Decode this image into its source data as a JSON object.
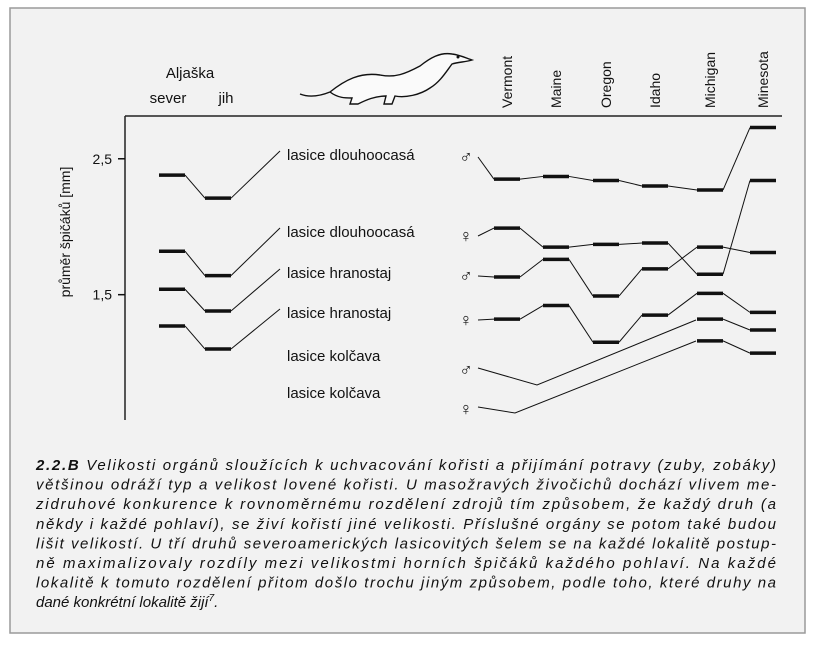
{
  "chart_data": {
    "type": "line",
    "y_label": "průměr špičáků [mm]",
    "group_label": "Aljaška",
    "categories": [
      "sever",
      "jih",
      "Vermont",
      "Maine",
      "Oregon",
      "Idaho",
      "Michigan",
      "Minesota"
    ],
    "ylim": [
      0.6,
      2.8
    ],
    "yticks": [
      {
        "value": 1.5,
        "label": "1,5"
      },
      {
        "value": 2.5,
        "label": "2,5"
      }
    ],
    "color": "#111111",
    "series": [
      {
        "name": "lasice dlouhoocasá",
        "sex": "♂",
        "values": [
          2.38,
          2.21,
          2.35,
          2.37,
          2.34,
          2.3,
          2.27,
          2.73
        ]
      },
      {
        "name": "lasice dlouhoocasá",
        "sex": "♀",
        "values": [
          1.82,
          1.64,
          1.99,
          1.85,
          1.87,
          1.88,
          1.65,
          2.34
        ]
      },
      {
        "name": "lasice hranostaj",
        "sex": "♂",
        "values": [
          1.54,
          1.38,
          1.63,
          1.76,
          1.49,
          1.69,
          1.85,
          1.81
        ]
      },
      {
        "name": "lasice hranostaj",
        "sex": "♀",
        "values": [
          1.27,
          1.1,
          1.32,
          1.42,
          1.15,
          1.35,
          1.51,
          1.37
        ]
      },
      {
        "name": "lasice kolčava",
        "sex": "♂",
        "values": [
          null,
          null,
          null,
          null,
          null,
          null,
          1.32,
          1.24
        ]
      },
      {
        "name": "lasice kolčava",
        "sex": "♀",
        "values": [
          null,
          null,
          null,
          null,
          null,
          null,
          1.16,
          1.07
        ]
      }
    ]
  },
  "caption": {
    "label": "2.2.B",
    "lines": [
      " Velikosti orgánů sloužících k uchvacování kořisti a přijímání potravy (zuby, zobáky)",
      "většinou odráží typ a velikost lovené kořisti. U masožravých živočichů dochází vlivem me-",
      "zidruhové konkurence k rovnoměrnému rozdělení zdrojů tím způsobem, že každý druh (a",
      "někdy i každé pohlaví), se živí kořistí jiné velikosti. Příslušné orgány se potom také budou",
      "lišit velikostí. U tří druhů severoamerických lasicovitých šelem se na každé lokalitě postup-",
      "ně maximalizovaly rozdíly mezi velikostmi horních špičáků každého pohlaví. Na každé",
      "lokalitě k tomuto rozdělení přitom došlo trochu jiným způsobem, podle toho, které druhy na",
      "dané konkrétní lokalitě žijí"
    ],
    "footnote": "7",
    "tail": "."
  }
}
